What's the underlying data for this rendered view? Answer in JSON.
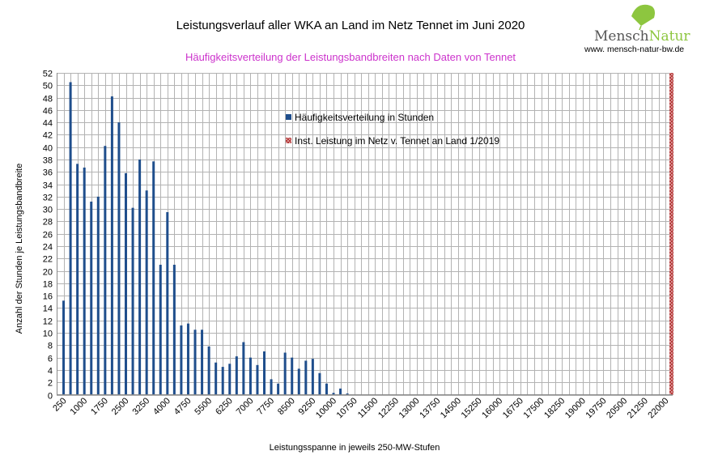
{
  "chart_data": {
    "type": "bar",
    "title": "Leistungsverlauf aller WKA an Land im Netz  Tennet im Juni 2020",
    "subtitle": "Häufigkeitsverteilung der Leistungsbandbreiten nach Daten von Tennet",
    "xlabel": "Leistungsspanne in jeweils 250-MW-Stufen",
    "ylabel": "Anzahl der Stunden je Leistungsbandbreite",
    "ylim": [
      0,
      52
    ],
    "ytick_step": 2,
    "grid": true,
    "legend_position": "upper-center",
    "x_ticks": [
      "250",
      "1000",
      "1750",
      "2500",
      "3250",
      "4000",
      "4750",
      "5500",
      "6250",
      "7000",
      "7750",
      "8500",
      "9250",
      "10000",
      "10750",
      "11500",
      "12250",
      "13000",
      "13750",
      "14500",
      "15250",
      "16000",
      "16750",
      "17500",
      "18250",
      "19000",
      "19750",
      "20500",
      "21250",
      "22000"
    ],
    "x_tick_start": 250,
    "x_tick_step": 750,
    "x_min": 0,
    "x_max": 22250,
    "series": [
      {
        "name": "Häufigkeitsverteilung in Stunden",
        "color": "#1f4e8c",
        "x": [
          250,
          500,
          750,
          1000,
          1250,
          1500,
          1750,
          2000,
          2250,
          2500,
          2750,
          3000,
          3250,
          3500,
          3750,
          4000,
          4250,
          4500,
          4750,
          5000,
          5250,
          5500,
          5750,
          6000,
          6250,
          6500,
          6750,
          7000,
          7250,
          7500,
          7750,
          8000,
          8250,
          8500,
          8750,
          9000,
          9250,
          9500,
          9750,
          10000,
          10250,
          10500,
          10750,
          11000
        ],
        "values": [
          15.2,
          50.5,
          37.3,
          36.7,
          31.2,
          32,
          40.2,
          48.2,
          44,
          35.8,
          30.2,
          38,
          33,
          37.7,
          21,
          29.5,
          21,
          11.2,
          11.5,
          10.5,
          10.5,
          7.8,
          5.2,
          4.5,
          5,
          6.2,
          8.5,
          6,
          4.8,
          7,
          2.5,
          1.8,
          6.8,
          6,
          4.2,
          5.5,
          5.8,
          3.5,
          1.8,
          0.3,
          1,
          0.2,
          0,
          0
        ]
      },
      {
        "name": "Inst. Leistung im Netz v. Tennet an Land 1/2019",
        "color": "#c0504d",
        "x": [
          22250
        ],
        "values": [
          52
        ]
      }
    ]
  },
  "logo": {
    "brand_left": "Mensch",
    "brand_right": "Natur",
    "website": "www. mensch-natur-bw.de",
    "leaf_color": "#8dc63f"
  }
}
